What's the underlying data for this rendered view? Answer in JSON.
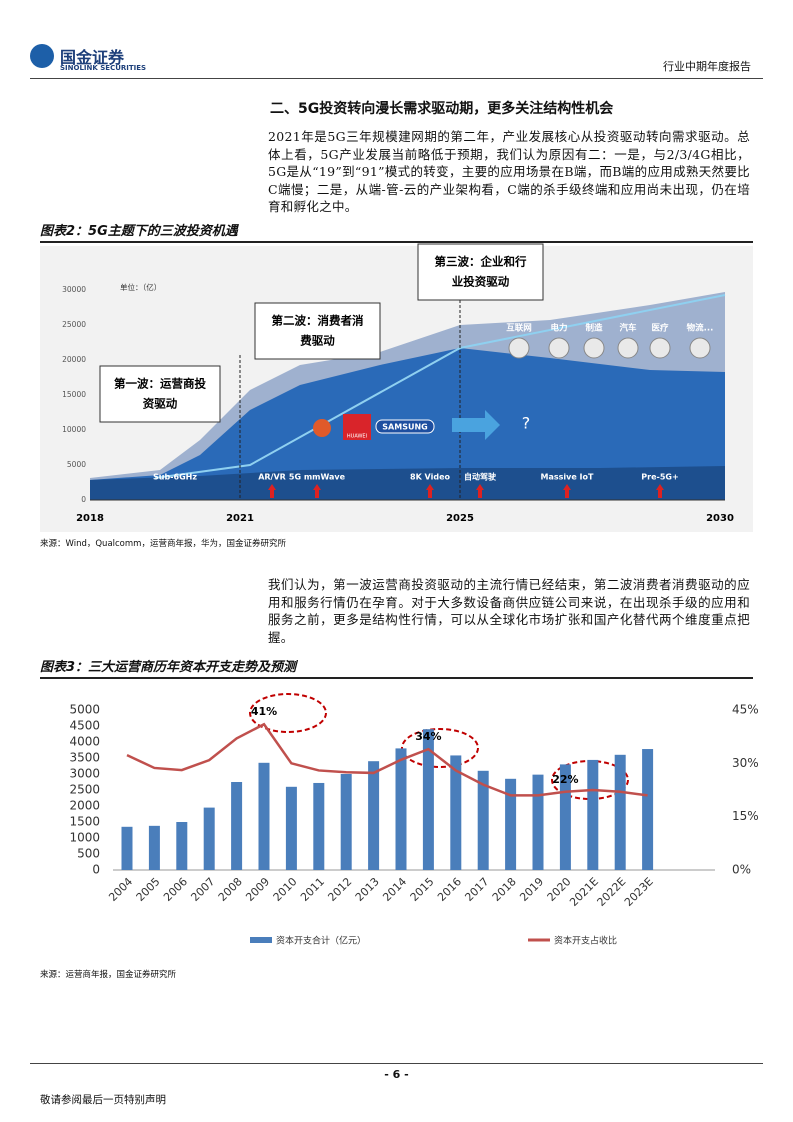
{
  "header": {
    "logo_cn": "国金证券",
    "logo_en": "SINOLINK SECURITIES",
    "report_type": "行业中期年度报告"
  },
  "section_title": "二、5G投资转向漫长需求驱动期，更多关注结构性机会",
  "paragraphs": [
    "2021年是5G三年规模建网期的第二年，产业发展核心从投资驱动转向需求驱动。总体上看，5G产业发展当前略低于预期，我们认为原因有二：一是，与2/3/4G相比，5G是从“19”到“91”模式的转变，主要的应用场景在B端，而B端的应用成熟天然要比C端慢；二是，从端-管-云的产业架构看，C端的杀手级终端和应用尚未出现，仍在培育和孵化之中。",
    "我们认为，第一波运营商投资驱动的主流行情已经结束，第二波消费者消费驱动的应用和服务行情仍在孕育。对于大多数设备商供应链公司来说，在出现杀手级的应用和服务之前，更多是结构性行情，可以从全球化市场扩张和国产化替代两个维度重点把握。"
  ],
  "figure2": {
    "title": "图表2：5G主题下的三波投资机遇",
    "unit": "单位：（亿）",
    "yticks": [
      0,
      5000,
      10000,
      15000,
      20000,
      25000,
      30000
    ],
    "ylim": [
      0,
      30000
    ],
    "years": [
      "2018",
      "2021",
      "2025",
      "2030"
    ],
    "waves": [
      [
        "第一波：运营商投",
        "资驱动"
      ],
      [
        "第二波：消费者消",
        "费驱动"
      ],
      [
        "第三波：企业和行",
        "业投资驱动"
      ]
    ],
    "techs": [
      "Sub-6GHz",
      "AR/VR",
      "5G mmWave",
      "8K Video",
      "自动驾驶",
      "Massive IoT",
      "Pre-5G+"
    ],
    "brands": [
      "HUAWEI",
      "SAMSUNG"
    ],
    "unknown": "?",
    "apps": [
      "互联网",
      "电力",
      "制造",
      "汽车",
      "医疗",
      "物流..."
    ],
    "source": "来源：Wind，Qualcomm，运营商年报，华为，国金证券研究所"
  },
  "figure3": {
    "title": "图表3：三大运营商历年资本开支走势及预测",
    "source": "来源：运营商年报，国金证券研究所",
    "chart_data": {
      "type": "bar_line",
      "categories": [
        "2004",
        "2005",
        "2006",
        "2007",
        "2008",
        "2009",
        "2010",
        "2011",
        "2012",
        "2013",
        "2014",
        "2015",
        "2016",
        "2017",
        "2018",
        "2019",
        "2020",
        "2021E",
        "2022E",
        "2023E"
      ],
      "series": [
        {
          "name": "资本开支合计（亿元）",
          "color": "#4a7ebb",
          "type": "bar",
          "values": [
            1350,
            1380,
            1500,
            1950,
            2750,
            3350,
            2600,
            2720,
            3000,
            3400,
            3800,
            4400,
            3580,
            3100,
            2850,
            2980,
            3300,
            3440,
            3600,
            3780
          ]
        },
        {
          "name": "资本开支占收比",
          "color": "#c0504d",
          "type": "line",
          "axis": "y2",
          "values": [
            32.3,
            28.7,
            28.1,
            30.9,
            37,
            41,
            30,
            28,
            27.5,
            27.3,
            31,
            34,
            28,
            24,
            21,
            21,
            22,
            22.5,
            22,
            21
          ],
          "value_labels": [
            null,
            null,
            null,
            null,
            null,
            "41%",
            null,
            null,
            null,
            null,
            null,
            "34%",
            null,
            null,
            null,
            null,
            "22%",
            null,
            null,
            null
          ]
        }
      ],
      "ylim": [
        0,
        5000
      ],
      "yticks": [
        0,
        500,
        1000,
        1500,
        2000,
        2500,
        3000,
        3500,
        4000,
        4500,
        5000
      ],
      "y2lim": [
        0,
        45
      ],
      "y2ticks": [
        {
          "value": 0,
          "label": "0%"
        },
        {
          "value": 15,
          "label": "15%"
        },
        {
          "value": 30,
          "label": "30%"
        },
        {
          "value": 45,
          "label": "45%"
        }
      ],
      "grid": false,
      "legend": "bottom"
    }
  },
  "footer": {
    "page": "- 6 -",
    "disclaimer": "敬请参阅最后一页特别声明"
  }
}
